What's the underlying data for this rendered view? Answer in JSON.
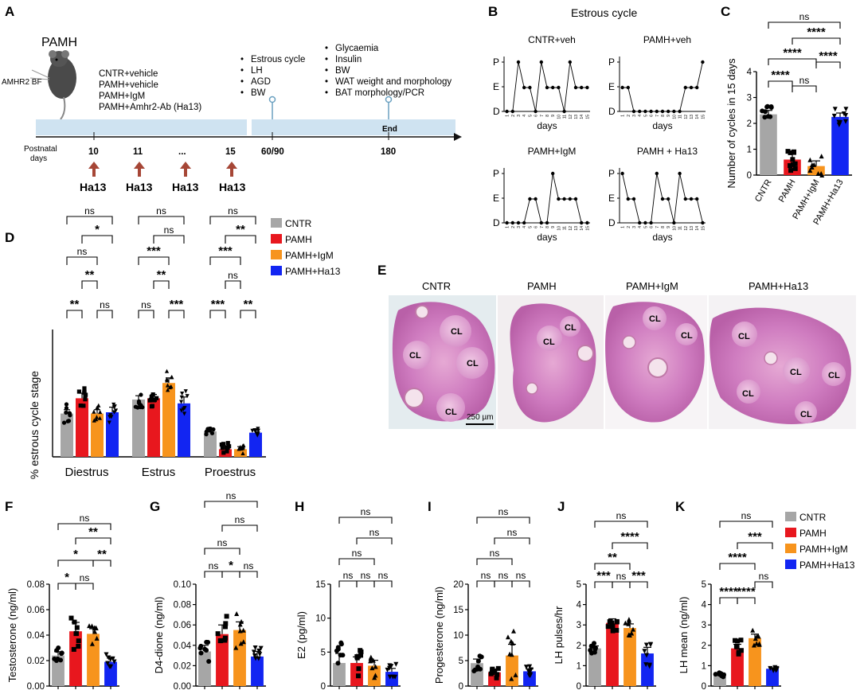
{
  "panel_letters": [
    "A",
    "B",
    "C",
    "D",
    "E",
    "F",
    "G",
    "H",
    "I",
    "J",
    "K"
  ],
  "colors": {
    "cntr": "#a6a6a6",
    "pamh": "#e8171e",
    "igm": "#f7941d",
    "ha13": "#1225f2",
    "timeline": "#cfe3f1",
    "arrow": "#a64636",
    "tick": "#6aa0c0"
  },
  "panel_a": {
    "model": "PAMH",
    "mouse_label": "AMHR2 BF",
    "groups": [
      "CNTR+vehicle",
      "PAMH+vehicle",
      "PAMH+IgM",
      "PAMH+Amhr2-Ab (Ha13)"
    ],
    "mid_list": [
      "Estrous cycle",
      "LH",
      "AGD",
      "BW"
    ],
    "end_list": [
      "Glycaemia",
      "Insulin",
      "BW",
      "WAT weight and morphology",
      "BAT morphology/PCR"
    ],
    "end_label": "End",
    "postnatal_label": [
      "Postnatal",
      "days"
    ],
    "days": [
      "10",
      "11",
      "...",
      "15",
      "60/90",
      "180"
    ],
    "injection_label": "Ha13"
  },
  "panel_b": {
    "title": "Estrous cycle",
    "y_labels": [
      "P",
      "E",
      "D"
    ],
    "x_label": "days",
    "day_ticks": [
      "1",
      "2",
      "3",
      "4",
      "5",
      "6",
      "7",
      "8",
      "9",
      "10",
      "11",
      "12",
      "13",
      "14",
      "15"
    ],
    "plots": [
      {
        "name": "CNTR+veh",
        "stages": [
          "D",
          "D",
          "P",
          "E",
          "E",
          "D",
          "P",
          "E",
          "E",
          "E",
          "D",
          "P",
          "E",
          "E",
          "E"
        ]
      },
      {
        "name": "PAMH+veh",
        "stages": [
          "E",
          "E",
          "D",
          "D",
          "D",
          "D",
          "D",
          "D",
          "D",
          "D",
          "D",
          "E",
          "E",
          "E",
          "P"
        ]
      },
      {
        "name": "PAMH+IgM",
        "stages": [
          "D",
          "D",
          "D",
          "D",
          "E",
          "E",
          "D",
          "D",
          "P",
          "E",
          "E",
          "E",
          "E",
          "D",
          "D"
        ]
      },
      {
        "name": "PAMH + Ha13",
        "stages": [
          "P",
          "E",
          "E",
          "D",
          "D",
          "D",
          "P",
          "E",
          "E",
          "D",
          "P",
          "E",
          "E",
          "E",
          "D"
        ]
      }
    ]
  },
  "panel_e": {
    "labels": [
      "CNTR",
      "PAMH",
      "PAMH+IgM",
      "PAMH+Ha13"
    ],
    "cl_label": "CL",
    "scale_bar": "250 µm"
  },
  "legend": [
    "CNTR",
    "PAMH",
    "PAMH+IgM",
    "PAMH+Ha13"
  ],
  "chart_data": [
    {
      "panel": "C",
      "type": "bar",
      "categories": [
        "CNTR",
        "PAMH",
        "PAMH+IgM",
        "PAMH+Ha13"
      ],
      "values": [
        2.35,
        0.6,
        0.35,
        2.25
      ],
      "errors": [
        0.15,
        0.2,
        0.2,
        0.15
      ],
      "ylabel": "Number of cycles in 15 days",
      "ylim": [
        0,
        4
      ],
      "yticks": [
        "0",
        "1",
        "2",
        "3",
        "4"
      ],
      "significance": [
        {
          "from": 0,
          "to": 3,
          "label": "ns"
        },
        {
          "from": 1,
          "to": 3,
          "label": "****"
        },
        {
          "from": 0,
          "to": 2,
          "label": "****"
        },
        {
          "from": 2,
          "to": 3,
          "label": "****"
        },
        {
          "from": 0,
          "to": 1,
          "label": "****"
        },
        {
          "from": 1,
          "to": 2,
          "label": "ns"
        }
      ]
    },
    {
      "panel": "D",
      "type": "bar",
      "groups": [
        "Diestrus",
        "Estrus",
        "Proestrus"
      ],
      "series_names": [
        "CNTR",
        "PAMH",
        "PAMH+IgM",
        "PAMH+Ha13"
      ],
      "values": [
        [
          34,
          46,
          34,
          35
        ],
        [
          45,
          46,
          58,
          42
        ],
        [
          20,
          6,
          6,
          19
        ]
      ],
      "errors": [
        [
          3,
          4,
          3,
          4
        ],
        [
          3,
          3,
          4,
          5
        ],
        [
          1,
          2,
          2,
          2
        ]
      ],
      "ylabel": "% estrous cycle stage",
      "ylim": [
        0,
        100
      ],
      "significance": [
        {
          "group": 0,
          "labels": [
            "ns",
            "*",
            "ns",
            "**",
            "**",
            "ns"
          ]
        },
        {
          "group": 1,
          "labels": [
            "ns",
            "ns",
            "***",
            "**",
            "ns",
            "***"
          ]
        },
        {
          "group": 2,
          "labels": [
            "ns",
            "**",
            "***",
            "ns",
            "***",
            "**"
          ]
        }
      ]
    },
    {
      "panel": "F",
      "type": "bar",
      "categories": [
        "CNTR",
        "PAMH",
        "PAMH+IgM",
        "PAMH+Ha13"
      ],
      "values": [
        0.024,
        0.043,
        0.041,
        0.019
      ],
      "errors": [
        0.003,
        0.007,
        0.004,
        0.003
      ],
      "ylabel": "Testosterone (ng/ml)",
      "ylim": [
        0,
        0.08
      ],
      "yticks": [
        "0.00",
        "0.02",
        "0.04",
        "0.06",
        "0.08"
      ],
      "significance": [
        "ns",
        "**",
        "*",
        "**",
        "*",
        "ns"
      ]
    },
    {
      "panel": "G",
      "type": "bar",
      "categories": [
        "CNTR",
        "PAMH",
        "PAMH+IgM",
        "PAMH+Ha13"
      ],
      "values": [
        0.034,
        0.051,
        0.055,
        0.029
      ],
      "errors": [
        0.006,
        0.009,
        0.008,
        0.005
      ],
      "ylabel": "D4-dione (ng/ml)",
      "ylim": [
        0,
        0.1
      ],
      "yticks": [
        "0.00",
        "0.02",
        "0.04",
        "0.06",
        "0.08",
        "0.10"
      ],
      "significance": [
        "ns",
        "ns",
        "ns",
        "ns",
        "ns",
        "*"
      ]
    },
    {
      "panel": "H",
      "type": "bar",
      "categories": [
        "CNTR",
        "PAMH",
        "PAMH+IgM",
        "PAMH+Ha13"
      ],
      "values": [
        3.4,
        3.4,
        3.0,
        2.1
      ],
      "errors": [
        1.4,
        0.9,
        0.8,
        0.5
      ],
      "ylabel": "E2 (pg/ml)",
      "ylim": [
        0,
        15
      ],
      "yticks": [
        "0",
        "5",
        "10",
        "15"
      ],
      "significance": [
        "ns",
        "ns",
        "ns",
        "ns",
        "ns",
        "ns"
      ]
    },
    {
      "panel": "I",
      "type": "bar",
      "categories": [
        "CNTR",
        "PAMH",
        "PAMH+IgM",
        "PAMH+Ha13"
      ],
      "values": [
        4.5,
        2.7,
        6.0,
        2.9
      ],
      "errors": [
        0.8,
        0.6,
        2.2,
        0.5
      ],
      "ylabel": "Progesterone (ng/ml)",
      "ylim": [
        0,
        20
      ],
      "yticks": [
        "0",
        "5",
        "10",
        "15",
        "20"
      ],
      "significance": [
        "ns",
        "ns",
        "ns",
        "ns",
        "ns",
        "ns"
      ]
    },
    {
      "panel": "J",
      "type": "bar",
      "categories": [
        "CNTR",
        "PAMH",
        "PAMH+IgM",
        "PAMH+Ha13"
      ],
      "values": [
        1.85,
        3.1,
        2.85,
        1.6
      ],
      "errors": [
        0.12,
        0.2,
        0.2,
        0.3
      ],
      "ylabel": "LH pulses/hr",
      "ylim": [
        0,
        5
      ],
      "yticks": [
        "0",
        "1",
        "2",
        "3",
        "4",
        "5"
      ],
      "significance": [
        "ns",
        "****",
        "**",
        "***",
        "***",
        "ns"
      ]
    },
    {
      "panel": "K",
      "type": "bar",
      "categories": [
        "CNTR",
        "PAMH",
        "PAMH+IgM",
        "PAMH+Ha13"
      ],
      "values": [
        0.55,
        1.85,
        2.35,
        0.85
      ],
      "errors": [
        0.05,
        0.2,
        0.2,
        0.05
      ],
      "ylabel": "LH mean (ng/ml)",
      "ylim": [
        0,
        5
      ],
      "yticks": [
        "0",
        "1",
        "2",
        "3",
        "4",
        "5"
      ],
      "significance": [
        "ns",
        "***",
        "****",
        "ns",
        "****",
        "****"
      ]
    }
  ]
}
